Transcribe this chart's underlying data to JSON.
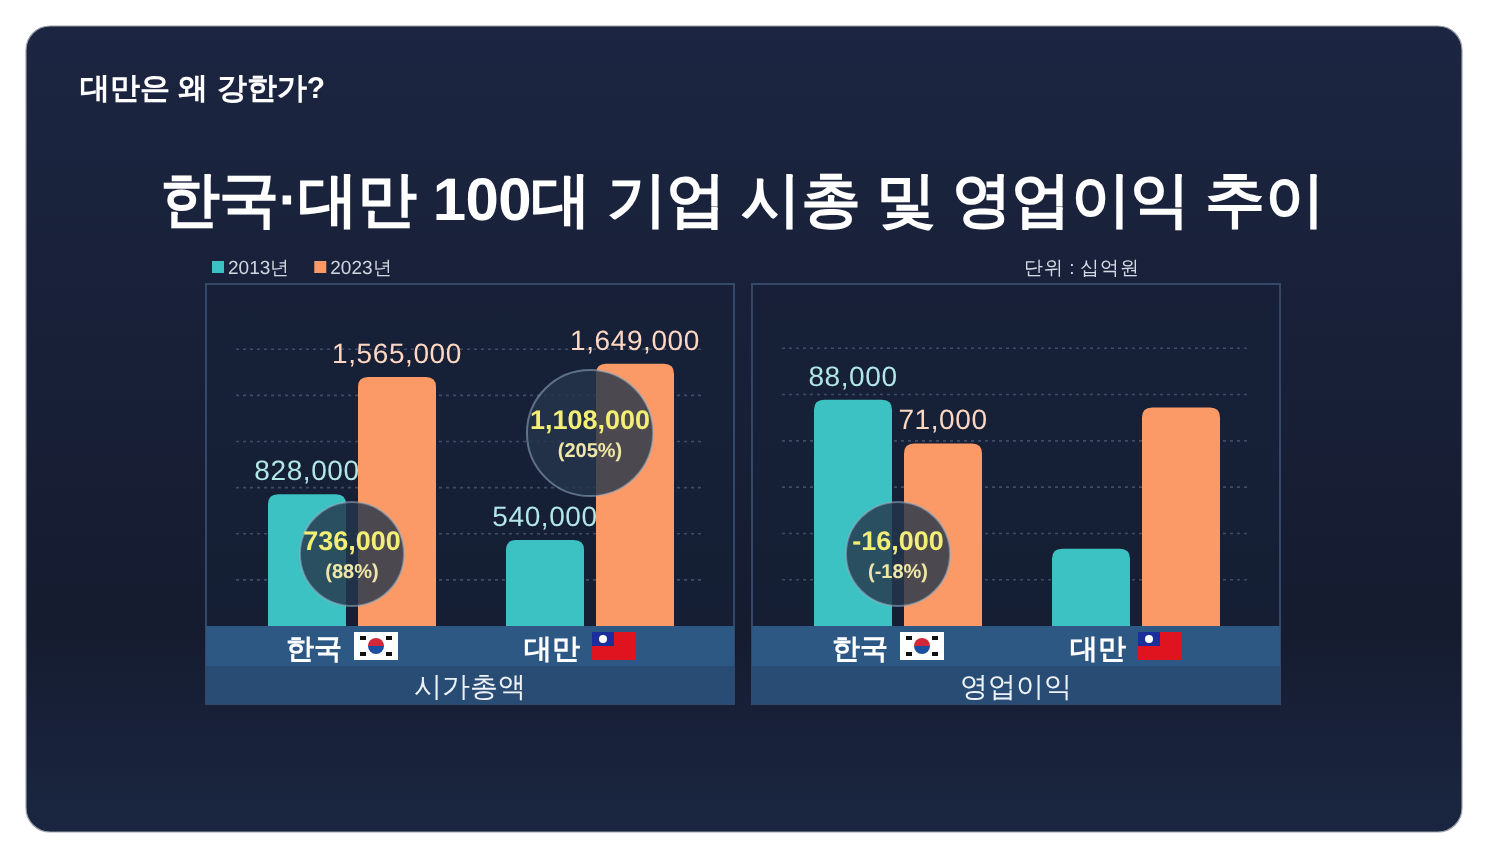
{
  "chart_data": [
    {
      "type": "other",
      "title": "한국·대만 100대 기업 시총 및 영업이익 추이",
      "subtitle": "대만은 왜 강한가?",
      "annotations": [
        "단위 : 십억원"
      ]
    },
    {
      "type": "bar",
      "title": "시가총액",
      "categories": [
        "한국",
        "대만"
      ],
      "series": [
        {
          "name": "2013년",
          "color": "#3cc2c2",
          "values": [
            828000,
            540000
          ],
          "value_labels": [
            "828,000",
            "540,000"
          ]
        },
        {
          "name": "2023년",
          "color": "#fb9a66",
          "values": [
            1565000,
            1649000
          ],
          "value_labels": [
            "1,565,000",
            "1,649,000"
          ]
        }
      ],
      "ylim": [
        0,
        2150000
      ],
      "yticks": [
        {
          "value": 290000,
          "label": null
        },
        {
          "value": 580000,
          "label": null
        },
        {
          "value": 870000,
          "label": null
        },
        {
          "value": 1160000,
          "label": null
        },
        {
          "value": 1450000,
          "label": null
        },
        {
          "value": 1740000,
          "label": null
        }
      ],
      "tick_labels": "x",
      "legend": "top left",
      "grid": "y",
      "annotations": [
        "736,000\n(88%)",
        "1,108,000\n(205%)"
      ]
    },
    {
      "type": "bar",
      "title": "영업이익",
      "categories": [
        "한국",
        "대만"
      ],
      "series": [
        {
          "color": "#3cc2c2",
          "values": [
            88000,
            30000
          ],
          "value_labels": [
            "88,000",
            null
          ]
        },
        {
          "color": "#fb9a66",
          "values": [
            71000,
            85000
          ],
          "value_labels": [
            "71,000",
            null
          ]
        }
      ],
      "ylim": [
        0,
        133000
      ],
      "yticks": [
        {
          "value": 18000,
          "label": null
        },
        {
          "value": 36000,
          "label": null
        },
        {
          "value": 54000,
          "label": null
        },
        {
          "value": 72000,
          "label": null
        },
        {
          "value": 90000,
          "label": null
        },
        {
          "value": 108000,
          "label": null
        }
      ],
      "tick_labels": "x",
      "grid": "y",
      "annotations": [
        "-16,000\n(-18%)"
      ]
    }
  ]
}
